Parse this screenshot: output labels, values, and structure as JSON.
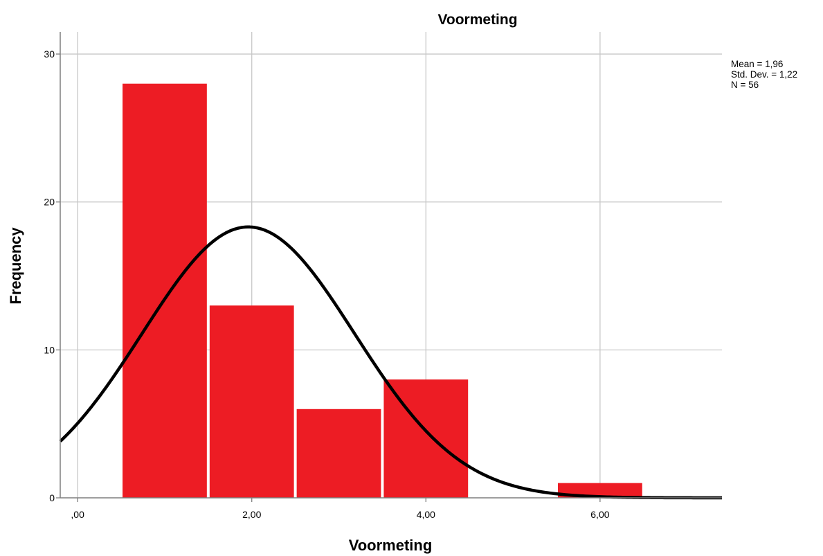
{
  "chart_data": {
    "type": "bar",
    "title": "Voormeting",
    "xlabel": "Voormeting",
    "ylabel": "Frequency",
    "bin_width": 1,
    "bins": [
      {
        "center": 1,
        "value": 28
      },
      {
        "center": 2,
        "value": 13
      },
      {
        "center": 3,
        "value": 6
      },
      {
        "center": 4,
        "value": 8
      },
      {
        "center": 5,
        "value": 0
      },
      {
        "center": 6,
        "value": 1
      }
    ],
    "xlim": [
      -0.2,
      7.4
    ],
    "ylim": [
      0,
      31.5
    ],
    "x_ticks": [
      {
        "value": 0,
        "label": ",00"
      },
      {
        "value": 2,
        "label": "2,00"
      },
      {
        "value": 4,
        "label": "4,00"
      },
      {
        "value": 6,
        "label": "6,00"
      }
    ],
    "y_ticks": [
      {
        "value": 0,
        "label": "0"
      },
      {
        "value": 10,
        "label": "10"
      },
      {
        "value": 20,
        "label": "20"
      },
      {
        "value": 30,
        "label": "30"
      }
    ],
    "normal_curve": {
      "mean": 1.96,
      "sd": 1.22,
      "n": 56
    },
    "stats": [
      "Mean = 1,96",
      "Std. Dev. = 1,22",
      "N = 56"
    ],
    "grid": true,
    "colors": {
      "bar": "#ED1C24",
      "curve": "#000000",
      "grid": "#C8C8C8",
      "axis": "#7F7F7F"
    }
  }
}
